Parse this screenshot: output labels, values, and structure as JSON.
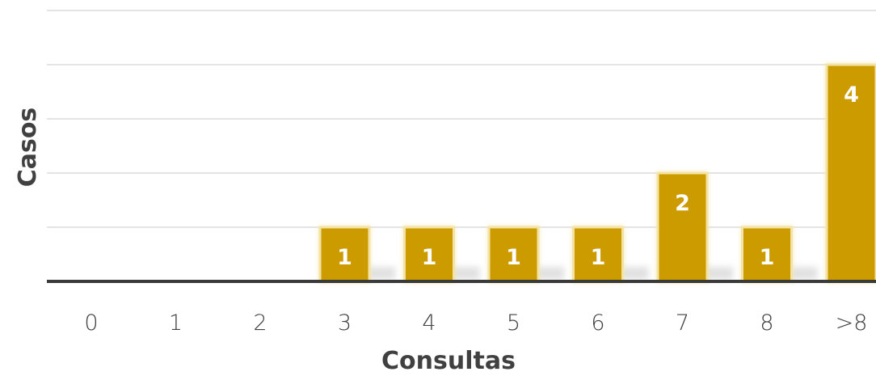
{
  "chart_data": {
    "type": "bar",
    "categories": [
      "0",
      "1",
      "2",
      "3",
      "4",
      "5",
      "6",
      "7",
      "8",
      ">8"
    ],
    "values": [
      0,
      0,
      0,
      1,
      1,
      1,
      1,
      2,
      1,
      4
    ],
    "xlabel": "Consultas",
    "ylabel": "Casos",
    "ylim": [
      0,
      5
    ],
    "grid": true,
    "colors": {
      "bar": "#cc9b00",
      "bar_outline": "#f3e3a6",
      "axis": "#3a3a3a",
      "grid": "#c9c9c9",
      "text": "#404040"
    }
  }
}
